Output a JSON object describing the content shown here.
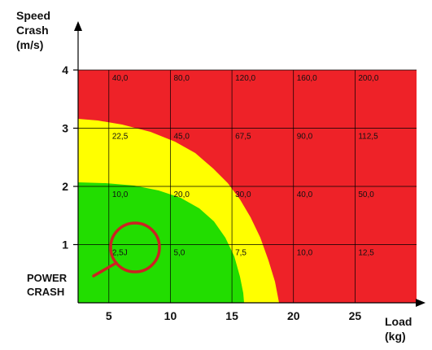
{
  "chart_data": {
    "type": "heatmap",
    "title": "",
    "ylabel_lines": [
      "Speed",
      "Crash",
      "(m/s)"
    ],
    "xlabel_lines": [
      "Load",
      "(kg)"
    ],
    "x_ticks": [
      5,
      10,
      15,
      20,
      25
    ],
    "y_ticks": [
      1,
      2,
      3,
      4
    ],
    "xlim": [
      2.5,
      30
    ],
    "ylim": [
      0,
      4
    ],
    "grid": true,
    "zones": [
      {
        "name": "green",
        "color": "#22dd00"
      },
      {
        "name": "yellow",
        "color": "#ffff00"
      },
      {
        "name": "red",
        "color": "#ee2228"
      }
    ],
    "cell_labels": [
      {
        "x": 5,
        "y": 4,
        "text": "40,0"
      },
      {
        "x": 10,
        "y": 4,
        "text": "80,0"
      },
      {
        "x": 15,
        "y": 4,
        "text": "120,0"
      },
      {
        "x": 20,
        "y": 4,
        "text": "160,0"
      },
      {
        "x": 25,
        "y": 4,
        "text": "200,0"
      },
      {
        "x": 5,
        "y": 3,
        "text": "22,5"
      },
      {
        "x": 10,
        "y": 3,
        "text": "45,0"
      },
      {
        "x": 15,
        "y": 3,
        "text": "67,5"
      },
      {
        "x": 20,
        "y": 3,
        "text": "90,0"
      },
      {
        "x": 25,
        "y": 3,
        "text": "112,5"
      },
      {
        "x": 5,
        "y": 2,
        "text": "10,0"
      },
      {
        "x": 10,
        "y": 2,
        "text": "20,0"
      },
      {
        "x": 15,
        "y": 2,
        "text": "30,0"
      },
      {
        "x": 20,
        "y": 2,
        "text": "40,0"
      },
      {
        "x": 25,
        "y": 2,
        "text": "50,0"
      },
      {
        "x": 5,
        "y": 1,
        "text": "2,5J"
      },
      {
        "x": 10,
        "y": 1,
        "text": "5,0"
      },
      {
        "x": 15,
        "y": 1,
        "text": "7,5"
      },
      {
        "x": 20,
        "y": 1,
        "text": "10,0"
      },
      {
        "x": 25,
        "y": 1,
        "text": "12,5"
      }
    ],
    "annotation": {
      "lines": [
        "POWER",
        "CRASH"
      ],
      "color": "#cc2222"
    }
  }
}
